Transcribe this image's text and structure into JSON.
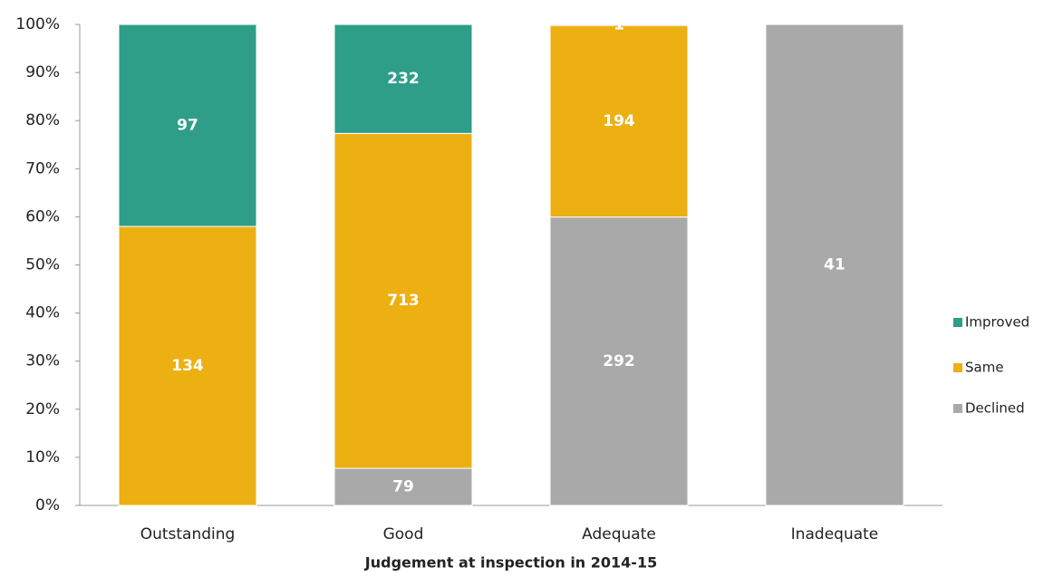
{
  "chart_data": {
    "type": "stacked_percent_bar",
    "x_label": "Judgement at inspection in 2014-15",
    "categories": [
      "Outstanding",
      "Good",
      "Adequate",
      "Inadequate"
    ],
    "series": [
      {
        "name": "Improved",
        "color": "#2e9e89",
        "values": [
          97,
          232,
          1,
          null
        ]
      },
      {
        "name": "Same",
        "color": "#edb013",
        "values": [
          134,
          713,
          194,
          null
        ]
      },
      {
        "name": "Declined",
        "color": "#a9a9a9",
        "values": [
          null,
          79,
          292,
          41
        ]
      }
    ],
    "ylim": [
      0,
      100
    ],
    "yticks": [
      {
        "value": 0,
        "label": "0%"
      },
      {
        "value": 10,
        "label": "10%"
      },
      {
        "value": 20,
        "label": "20%"
      },
      {
        "value": 30,
        "label": "30%"
      },
      {
        "value": 40,
        "label": "40%"
      },
      {
        "value": 50,
        "label": "50%"
      },
      {
        "value": 60,
        "label": "60%"
      },
      {
        "value": 70,
        "label": "70%"
      },
      {
        "value": 80,
        "label": "80%"
      },
      {
        "value": 90,
        "label": "90%"
      },
      {
        "value": 100,
        "label": "100%"
      }
    ],
    "grid": false,
    "legend": "right"
  }
}
